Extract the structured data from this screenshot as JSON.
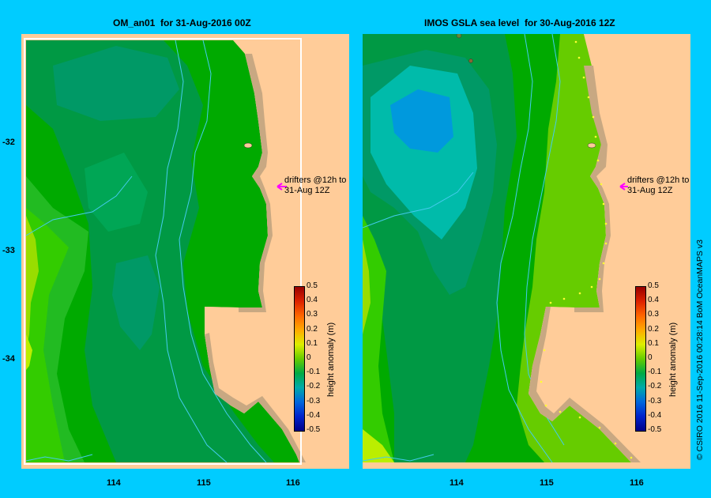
{
  "panels": [
    {
      "title": "OM_an01  for 31-Aug-2016 00Z"
    },
    {
      "title": "IMOS GSLA sea level  for 30-Aug-2016 12Z"
    }
  ],
  "y_ticks": [
    "-32",
    "-33",
    "-34"
  ],
  "x_ticks": [
    "114",
    "115",
    "116"
  ],
  "drifter_note": {
    "line1": "drifters @12h to",
    "line2": "31-Aug 12Z"
  },
  "colorbar": {
    "title": "height anomaly (m)",
    "labels": [
      "0.5",
      "0.4",
      "0.3",
      "0.2",
      "0.1",
      "0",
      "-0.1",
      "-0.2",
      "-0.3",
      "-0.4",
      "-0.5"
    ]
  },
  "credit": "© CSIRO 2016   11-Sep-2016 00:28:14 BoM OceanMAPS v3",
  "colors": {
    "background": "#00ccff",
    "land": "#ffcc99",
    "coast_strip": "#c8a882",
    "contour": "#44ccee",
    "drifter_arrow": "#ff00ff",
    "altimetry_dots": "#ffff33"
  }
}
